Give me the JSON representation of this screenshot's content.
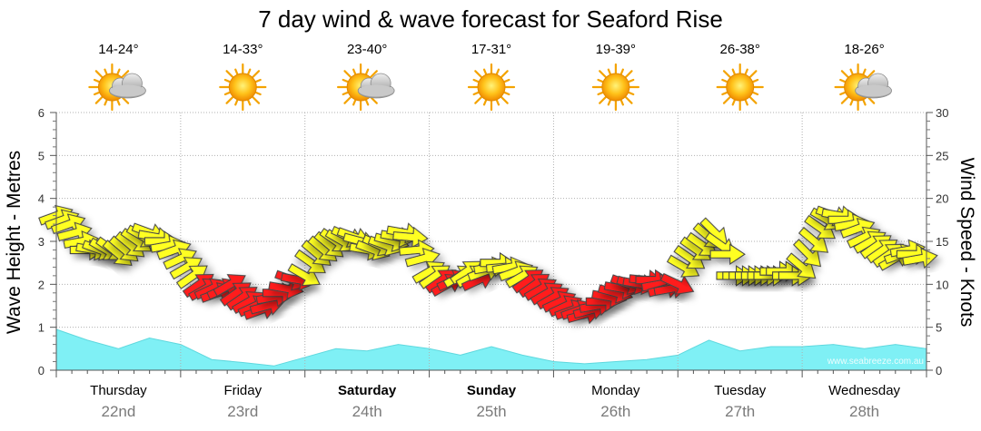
{
  "chart_data": {
    "type": "line",
    "title": "7 day wind & wave forecast for Seaford Rise",
    "ylabel_left": "Wave Height - Metres",
    "ylabel_right": "Wind Speed - Knots",
    "ylim_left": [
      0,
      6
    ],
    "ylim_right": [
      0,
      30
    ],
    "yticks_left": [
      "0",
      "1",
      "2",
      "3",
      "4",
      "5",
      "6"
    ],
    "yticks_right": [
      "0",
      "5",
      "10",
      "15",
      "20",
      "25",
      "30"
    ],
    "grid": true,
    "watermark": "www.seabreeze.com.au",
    "days": [
      {
        "name": "Thursday",
        "date": "22nd",
        "temp": "14-24°",
        "weather": "partly-cloudy",
        "bold": false
      },
      {
        "name": "Friday",
        "date": "23rd",
        "temp": "14-33°",
        "weather": "sunny",
        "bold": false
      },
      {
        "name": "Saturday",
        "date": "24th",
        "temp": "23-40°",
        "weather": "partly-cloudy",
        "bold": true
      },
      {
        "name": "Sunday",
        "date": "25th",
        "temp": "17-31°",
        "weather": "sunny",
        "bold": true
      },
      {
        "name": "Monday",
        "date": "26th",
        "temp": "19-39°",
        "weather": "sunny",
        "bold": false
      },
      {
        "name": "Tuesday",
        "date": "27th",
        "temp": "26-38°",
        "weather": "sunny",
        "bold": false
      },
      {
        "name": "Wednesday",
        "date": "28th",
        "temp": "18-26°",
        "weather": "partly-cloudy",
        "bold": false
      }
    ],
    "colors": {
      "wave_fill": "#7ff0f5",
      "wind_light": "#ffff22",
      "wind_strong": "#ff1a1a",
      "arrow_stroke": "#444444",
      "grid": "#b0b0b0"
    },
    "wave_series": {
      "name": "Wave Height",
      "unit": "m",
      "x_days": [
        0,
        0.25,
        0.5,
        0.75,
        1,
        1.25,
        1.5,
        1.75,
        2,
        2.25,
        2.5,
        2.75,
        3,
        3.25,
        3.5,
        3.75,
        4,
        4.25,
        4.5,
        4.75,
        5,
        5.25,
        5.5,
        5.75,
        6,
        6.25,
        6.5,
        6.75,
        7
      ],
      "values": [
        0.95,
        0.7,
        0.5,
        0.75,
        0.6,
        0.25,
        0.18,
        0.1,
        0.3,
        0.5,
        0.45,
        0.6,
        0.5,
        0.35,
        0.55,
        0.35,
        0.2,
        0.15,
        0.2,
        0.25,
        0.35,
        0.7,
        0.45,
        0.55,
        0.55,
        0.6,
        0.5,
        0.6,
        0.5
      ]
    },
    "wind_series": {
      "name": "Wind Speed",
      "unit": "knots",
      "strong_threshold_knots": 11,
      "points": [
        [
          0.0,
          18.0,
          -20
        ],
        [
          0.05,
          17.5,
          -20
        ],
        [
          0.1,
          17.0,
          -20
        ],
        [
          0.15,
          16.0,
          -15
        ],
        [
          0.2,
          15.0,
          -10
        ],
        [
          0.25,
          14.0,
          0
        ],
        [
          0.3,
          14.0,
          10
        ],
        [
          0.35,
          14.0,
          20
        ],
        [
          0.4,
          14.0,
          30
        ],
        [
          0.45,
          14.0,
          35
        ],
        [
          0.5,
          13.5,
          40
        ],
        [
          0.55,
          14.0,
          40
        ],
        [
          0.6,
          14.5,
          40
        ],
        [
          0.65,
          15.0,
          35
        ],
        [
          0.7,
          15.5,
          30
        ],
        [
          0.75,
          16.0,
          20
        ],
        [
          0.8,
          15.5,
          10
        ],
        [
          0.85,
          15.0,
          0
        ],
        [
          0.9,
          14.5,
          -10
        ],
        [
          0.95,
          14.0,
          -20
        ],
        [
          1.0,
          13.0,
          -25
        ],
        [
          1.05,
          12.0,
          -30
        ],
        [
          1.1,
          11.0,
          -35
        ],
        [
          1.15,
          10.0,
          -35
        ],
        [
          1.2,
          9.5,
          -30
        ],
        [
          1.25,
          9.5,
          -25
        ],
        [
          1.3,
          9.0,
          -20
        ],
        [
          1.35,
          9.5,
          -25
        ],
        [
          1.4,
          10.0,
          -30
        ],
        [
          1.45,
          9.0,
          -35
        ],
        [
          1.5,
          8.5,
          -35
        ],
        [
          1.55,
          8.0,
          -30
        ],
        [
          1.6,
          7.5,
          -25
        ],
        [
          1.65,
          7.0,
          -20
        ],
        [
          1.7,
          7.5,
          -15
        ],
        [
          1.75,
          8.5,
          -10
        ],
        [
          1.8,
          9.0,
          0
        ],
        [
          1.85,
          9.5,
          10
        ],
        [
          1.9,
          10.5,
          20
        ],
        [
          1.95,
          10.5,
          10
        ],
        [
          2.0,
          11.0,
          30
        ],
        [
          2.05,
          12.5,
          35
        ],
        [
          2.1,
          13.5,
          40
        ],
        [
          2.15,
          14.0,
          40
        ],
        [
          2.2,
          14.5,
          40
        ],
        [
          2.25,
          15.0,
          35
        ],
        [
          2.3,
          15.0,
          30
        ],
        [
          2.35,
          15.5,
          25
        ],
        [
          2.4,
          15.5,
          20
        ],
        [
          2.45,
          15.0,
          15
        ],
        [
          2.5,
          14.0,
          10
        ],
        [
          2.55,
          14.0,
          20
        ],
        [
          2.6,
          14.5,
          25
        ],
        [
          2.65,
          14.5,
          20
        ],
        [
          2.7,
          15.0,
          15
        ],
        [
          2.75,
          15.5,
          10
        ],
        [
          2.8,
          16.0,
          10
        ],
        [
          2.85,
          15.5,
          5
        ],
        [
          2.9,
          14.0,
          -5
        ],
        [
          2.95,
          13.0,
          -15
        ],
        [
          3.0,
          11.5,
          -30
        ],
        [
          3.05,
          11.0,
          -35
        ],
        [
          3.1,
          10.5,
          -35
        ],
        [
          3.15,
          10.0,
          -30
        ],
        [
          3.2,
          10.5,
          -25
        ],
        [
          3.25,
          11.0,
          -30
        ],
        [
          3.3,
          11.5,
          -35
        ],
        [
          3.35,
          11.0,
          -30
        ],
        [
          3.4,
          10.5,
          -25
        ],
        [
          3.45,
          11.5,
          -20
        ],
        [
          3.5,
          12.0,
          -10
        ],
        [
          3.55,
          12.5,
          0
        ],
        [
          3.6,
          12.0,
          -5
        ],
        [
          3.65,
          12.0,
          -10
        ],
        [
          3.7,
          11.5,
          -20
        ],
        [
          3.75,
          11.0,
          -30
        ],
        [
          3.8,
          10.5,
          -35
        ],
        [
          3.85,
          10.0,
          -35
        ],
        [
          3.9,
          9.5,
          -30
        ],
        [
          3.95,
          9.0,
          -30
        ],
        [
          4.0,
          8.5,
          -30
        ],
        [
          4.05,
          8.0,
          -25
        ],
        [
          4.1,
          7.5,
          -25
        ],
        [
          4.15,
          7.0,
          -20
        ],
        [
          4.2,
          7.0,
          -20
        ],
        [
          4.25,
          6.5,
          -15
        ],
        [
          4.3,
          7.0,
          -15
        ],
        [
          4.35,
          7.5,
          -10
        ],
        [
          4.4,
          8.0,
          0
        ],
        [
          4.45,
          8.5,
          10
        ],
        [
          4.5,
          9.0,
          15
        ],
        [
          4.55,
          9.5,
          10
        ],
        [
          4.6,
          10.0,
          20
        ],
        [
          4.65,
          10.0,
          15
        ],
        [
          4.7,
          10.0,
          10
        ],
        [
          4.75,
          10.5,
          5
        ],
        [
          4.8,
          10.5,
          0
        ],
        [
          4.85,
          10.0,
          -10
        ],
        [
          4.9,
          9.5,
          -15
        ],
        [
          4.95,
          9.5,
          -10
        ],
        [
          5.0,
          10.0,
          25
        ],
        [
          5.05,
          12.0,
          30
        ],
        [
          5.1,
          13.0,
          35
        ],
        [
          5.15,
          14.0,
          35
        ],
        [
          5.2,
          14.5,
          35
        ],
        [
          5.25,
          15.5,
          40
        ],
        [
          5.3,
          16.0,
          45
        ],
        [
          5.35,
          14.5,
          35
        ],
        [
          5.4,
          13.5,
          0
        ],
        [
          5.45,
          11.0,
          0
        ],
        [
          5.5,
          11.0,
          0
        ],
        [
          5.55,
          11.0,
          0
        ],
        [
          5.6,
          11.0,
          0
        ],
        [
          5.65,
          11.0,
          0
        ],
        [
          5.7,
          11.0,
          0
        ],
        [
          5.75,
          11.0,
          0
        ],
        [
          5.8,
          11.5,
          0
        ],
        [
          5.85,
          11.5,
          0
        ],
        [
          5.9,
          11.0,
          0
        ],
        [
          5.95,
          11.0,
          0
        ],
        [
          6.0,
          12.0,
          40
        ],
        [
          6.05,
          13.5,
          45
        ],
        [
          6.1,
          15.0,
          40
        ],
        [
          6.15,
          16.5,
          35
        ],
        [
          6.2,
          17.5,
          30
        ],
        [
          6.25,
          18.0,
          20
        ],
        [
          6.3,
          18.0,
          10
        ],
        [
          6.35,
          17.5,
          0
        ],
        [
          6.4,
          17.0,
          -10
        ],
        [
          6.45,
          16.5,
          -20
        ],
        [
          6.5,
          15.5,
          -25
        ],
        [
          6.55,
          15.0,
          -30
        ],
        [
          6.6,
          14.5,
          -35
        ],
        [
          6.65,
          14.0,
          -35
        ],
        [
          6.7,
          13.5,
          -35
        ],
        [
          6.75,
          13.0,
          -30
        ],
        [
          6.8,
          13.5,
          -20
        ],
        [
          6.85,
          14.0,
          -10
        ],
        [
          6.9,
          13.5,
          0
        ],
        [
          6.95,
          13.0,
          -10
        ]
      ]
    }
  }
}
